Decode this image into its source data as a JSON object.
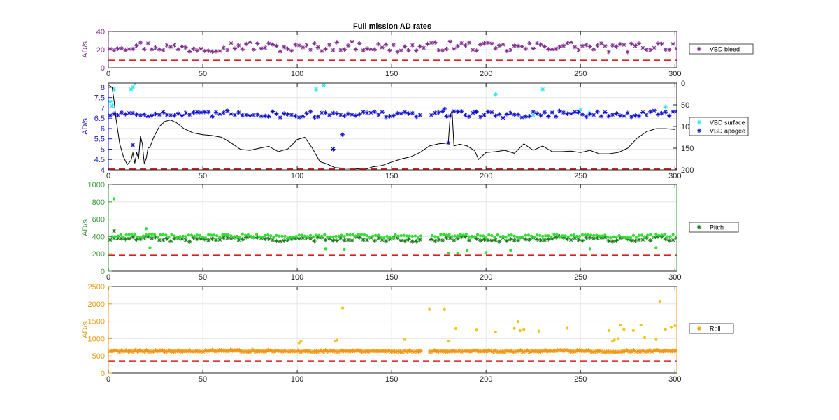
{
  "chart_data": {
    "type": "scatter",
    "title": "Full mission AD rates",
    "subplots": [
      {
        "id": "bleed",
        "ylabel": "AD/s",
        "ylim": [
          0,
          40
        ],
        "yticks": [
          0,
          20,
          40
        ],
        "xlim": [
          0,
          301
        ],
        "xticks": [
          0,
          50,
          100,
          150,
          200,
          250,
          300
        ],
        "color": "#7E2F8E",
        "grid": true,
        "legend_placement": "right",
        "threshold": {
          "value": 8,
          "color": "#d62020",
          "style": "dashed"
        },
        "series": [
          {
            "name": "VBD bleed",
            "marker": "*",
            "color": "#7E2F8E",
            "generator": {
              "x_start": 1,
              "x_end": 301,
              "step": 2,
              "base": 23,
              "amplitude": 5,
              "gaps": []
            }
          }
        ]
      },
      {
        "id": "vbd",
        "ylabel": "AD/s",
        "ylim": [
          4,
          8.2
        ],
        "yticks": [
          4,
          4.5,
          5,
          5.5,
          6,
          6.5,
          7,
          7.5,
          8
        ],
        "right_ylim": [
          0,
          200
        ],
        "right_yticks": [
          0,
          50,
          100,
          150,
          200
        ],
        "right_axis_reversed": true,
        "xlim": [
          0,
          301
        ],
        "xticks": [
          0,
          50,
          100,
          150,
          200,
          250,
          300
        ],
        "color": "#1f1fbf",
        "grid": true,
        "legend_placement": "right",
        "threshold": {
          "value": 4.05,
          "color": "#d62020",
          "style": "dashed"
        },
        "series": [
          {
            "name": "VBD surface",
            "marker": "*",
            "color": "#22e6f0",
            "x": [
              1,
              2,
              3,
              12,
              13,
              14,
              110,
              114,
              205,
              230,
              225,
              250,
              255,
              295
            ],
            "y": [
              7.3,
              7.1,
              7.9,
              7.9,
              8.0,
              8.2,
              7.9,
              8.1,
              7.65,
              7.9,
              6.65,
              6.9,
              6.75,
              7.05
            ]
          },
          {
            "name": "VBD apogee",
            "marker": "*",
            "color": "#1010d0",
            "generator": {
              "x_start": 1,
              "x_end": 301,
              "step": 2,
              "base": 6.7,
              "amplitude": 0.15,
              "gaps": [
                [
                  166,
                  170
                ]
              ]
            },
            "extra_x": [
              13,
              119,
              124,
              178,
              180,
              194
            ],
            "extra_y": [
              5.2,
              5.0,
              5.7,
              6.95,
              5.3,
              6.8
            ]
          },
          {
            "name": "depth",
            "axis": "right",
            "line": true,
            "color": "#000000",
            "x": [
              0,
              2,
              3,
              4,
              6,
              8,
              10,
              12,
              13,
              14,
              15,
              16,
              17,
              18,
              19,
              20,
              21,
              22,
              24,
              27,
              30,
              33,
              36,
              40,
              45,
              50,
              55,
              60,
              65,
              70,
              75,
              80,
              85,
              90,
              95,
              100,
              104,
              108,
              112,
              116,
              120,
              124,
              130,
              136,
              140,
              145,
              150,
              155,
              160,
              165,
              170,
              175,
              180,
              181,
              182,
              183,
              186,
              190,
              194,
              196,
              200,
              205,
              210,
              215,
              220,
              225,
              230,
              235,
              240,
              245,
              250,
              255,
              260,
              265,
              270,
              275,
              280,
              285,
              290,
              295,
              300
            ],
            "y": [
              3,
              10,
              40,
              80,
              140,
              170,
              188,
              178,
              160,
              185,
              160,
              175,
              122,
              140,
              185,
              175,
              150,
              148,
              125,
              100,
              88,
              85,
              91,
              105,
              115,
              119,
              121,
              125,
              138,
              153,
              155,
              150,
              146,
              158,
              152,
              130,
              125,
              150,
              181,
              187,
              195,
              196,
              197,
              199,
              193,
              190,
              182,
              175,
              170,
              160,
              145,
              140,
              138,
              75,
              63,
              145,
              141,
              145,
              156,
              176,
              160,
              158,
              155,
              162,
              140,
              155,
              145,
              158,
              158,
              157,
              160,
              155,
              163,
              163,
              160,
              150,
              127,
              112,
              105,
              105,
              107
            ]
          }
        ]
      },
      {
        "id": "pitch",
        "ylabel": "AD/s",
        "ylim": [
          0,
          1000
        ],
        "yticks": [
          0,
          200,
          400,
          600,
          800,
          1000
        ],
        "xlim": [
          0,
          301
        ],
        "xticks": [
          0,
          50,
          100,
          150,
          200,
          250,
          300
        ],
        "color": "#3c9a3c",
        "grid": true,
        "legend_placement": "right",
        "threshold": {
          "value": 180,
          "color": "#d62020",
          "style": "dashed"
        },
        "series": [
          {
            "name": "Pitch",
            "marker": "*",
            "color": "#1f7a1f",
            "generator": {
              "x_start": 1,
              "x_end": 301,
              "step": 2,
              "base": 370,
              "amplitude": 25,
              "gaps": [
                [
                  166,
                  170
                ]
              ]
            },
            "extra_x": [
              3
            ],
            "extra_y": [
              465
            ]
          },
          {
            "name": "",
            "marker": "dot",
            "color": "#2fe02f",
            "generator": {
              "x_start": 2,
              "x_end": 300,
              "step": 1.5,
              "base": 405,
              "amplitude": 20,
              "gaps": [
                [
                  166,
                  170
                ]
              ]
            },
            "extra_x": [
              3,
              20,
              22,
              115,
              125,
              180,
              185,
              190,
              200,
              213,
              255,
              290
            ],
            "extra_y": [
              835,
              490,
              270,
              255,
              250,
              210,
              205,
              235,
              215,
              240,
              255,
              270
            ]
          }
        ]
      },
      {
        "id": "roll",
        "ylabel": "AD/s",
        "ylim": [
          0,
          2500
        ],
        "yticks": [
          0,
          500,
          1000,
          1500,
          2000,
          2500
        ],
        "xlim": [
          0,
          301
        ],
        "xticks": [
          0,
          50,
          100,
          150,
          200,
          250,
          300
        ],
        "color": "#e89a16",
        "grid": true,
        "legend_placement": "right",
        "threshold": {
          "value": 350,
          "color": "#d62020",
          "style": "dashed"
        },
        "series": [
          {
            "name": "Roll",
            "marker": "*",
            "color": "#f0960f",
            "generator": {
              "x_start": 1,
              "x_end": 301,
              "step": 1.2,
              "base": 640,
              "amplitude": 25,
              "gaps": [
                [
                  166,
                  170
                ]
              ]
            }
          },
          {
            "name": "",
            "marker": "dot",
            "color": "#f5c518",
            "x": [
              101,
              102,
              120,
              121,
              124,
              157,
              170,
              178,
              180,
              184,
              195,
              205,
              215,
              217,
              218,
              220,
              228,
              243,
              265,
              267,
              268,
              270,
              271,
              273,
              278,
              282,
              284,
              290,
              292,
              295,
              298,
              300
            ],
            "y": [
              875,
              925,
              925,
              955,
              1880,
              975,
              1840,
              1840,
              925,
              1290,
              1245,
              1190,
              1295,
              1490,
              1230,
              1260,
              1215,
              1300,
              1230,
              920,
              960,
              1000,
              1390,
              1265,
              1230,
              1390,
              1030,
              975,
              2060,
              1260,
              1320,
              1370
            ]
          }
        ]
      }
    ]
  }
}
